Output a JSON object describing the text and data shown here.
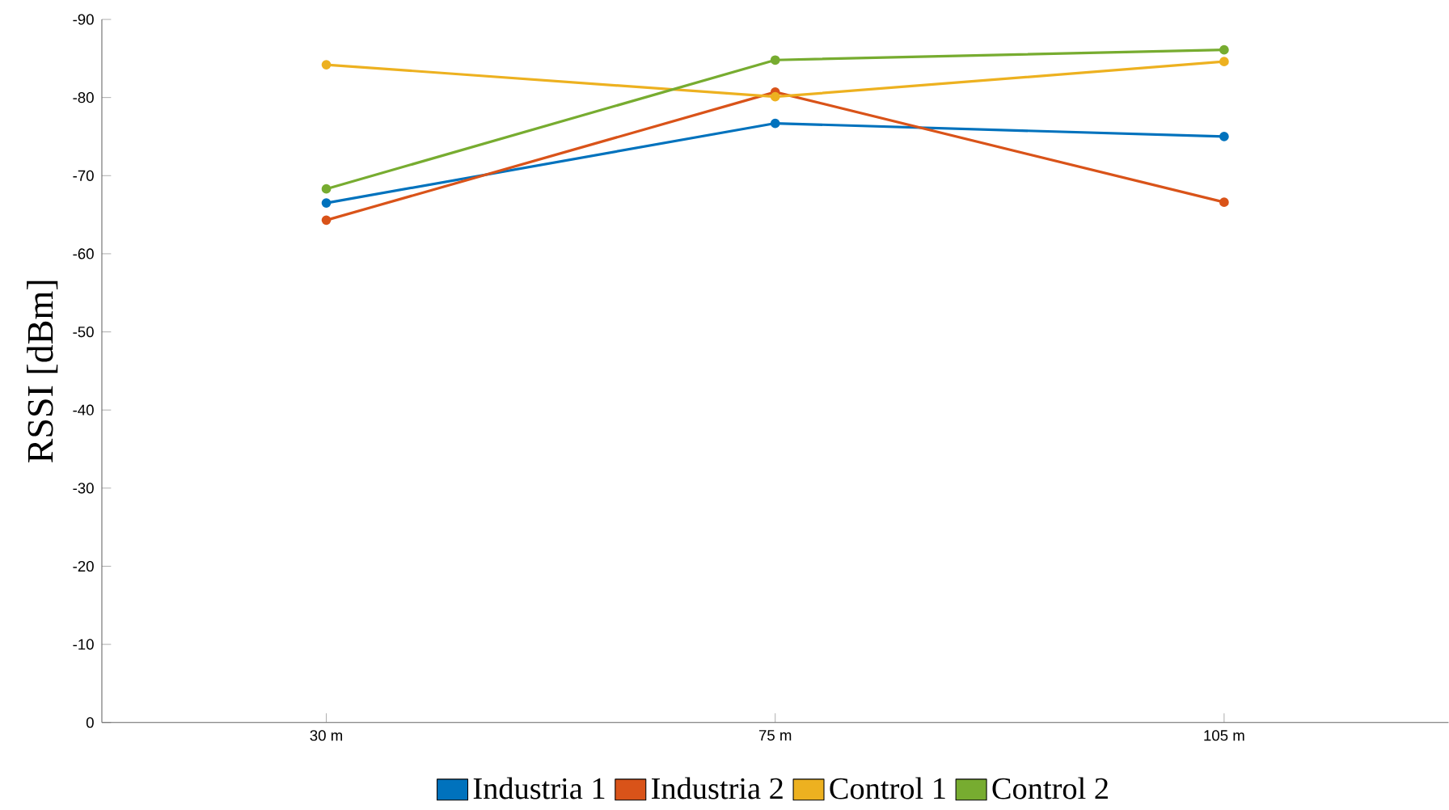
{
  "chart_data": {
    "type": "line",
    "ylabel": "RSSI [dBm]",
    "categories": [
      "30 m",
      "75 m",
      "105 m"
    ],
    "ylim": [
      0,
      -90
    ],
    "yticks": [
      0,
      -10,
      -20,
      -30,
      -40,
      -50,
      -60,
      -70,
      -80,
      -90
    ],
    "legend": "bottom",
    "marker": "circle",
    "line_style": "solid",
    "series": [
      {
        "name": "Industria 1",
        "color": "#0072bd",
        "values": [
          -66.5,
          -76.7,
          -75.0
        ]
      },
      {
        "name": "Industria 2",
        "color": "#d95319",
        "values": [
          -64.3,
          -80.7,
          -66.6
        ]
      },
      {
        "name": "Control 1",
        "color": "#edb120",
        "values": [
          -84.2,
          -80.1,
          -84.6
        ]
      },
      {
        "name": "Control 2",
        "color": "#77ac30",
        "values": [
          -68.3,
          -84.8,
          -86.1
        ]
      }
    ]
  }
}
